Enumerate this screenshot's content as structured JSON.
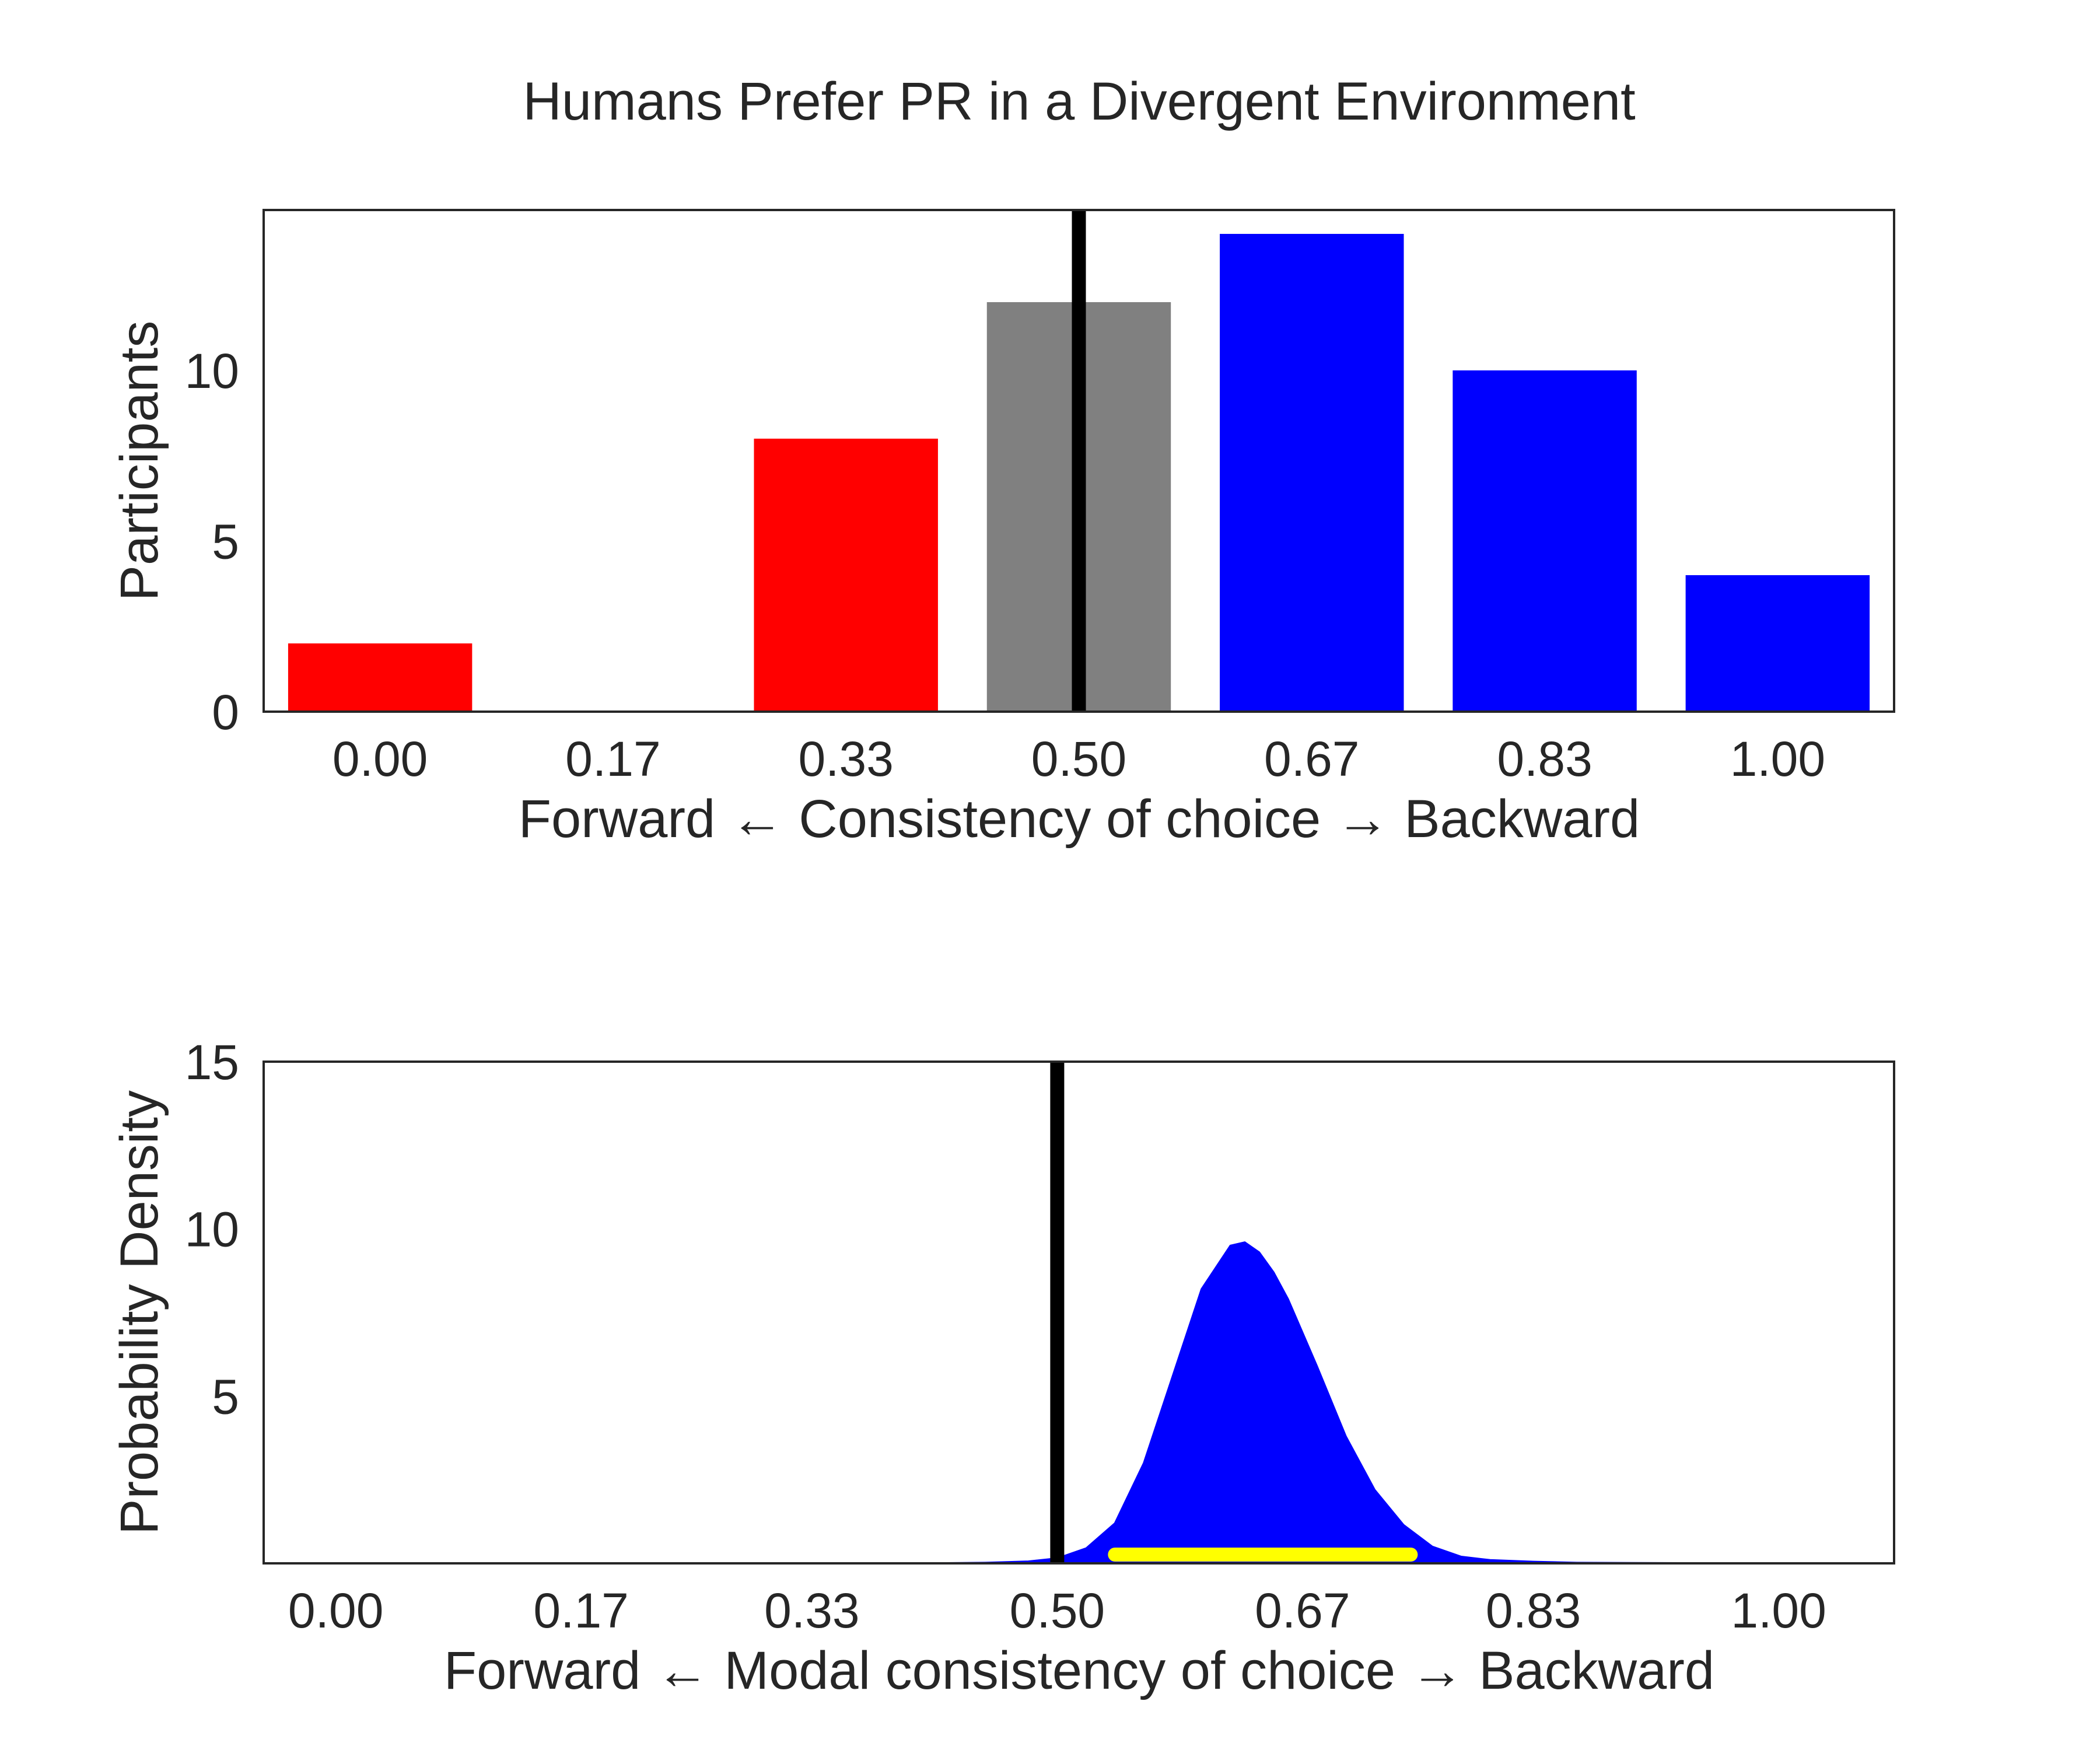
{
  "title": "Humans Prefer PR in a Divergent Environment",
  "colors": {
    "forward": "#ff0000",
    "neutral": "#808080",
    "backward": "#0000ff",
    "reference_line": "#000000",
    "interval": "#ffff00"
  },
  "chart_data": [
    {
      "type": "bar",
      "categories": [
        "0.00",
        "0.17",
        "0.33",
        "0.50",
        "0.67",
        "0.83",
        "1.00"
      ],
      "values": [
        2,
        0,
        8,
        12,
        14,
        10,
        4
      ],
      "bar_colors": [
        "forward",
        "forward",
        "forward",
        "neutral",
        "backward",
        "backward",
        "backward"
      ],
      "xlabel": "Forward ← Consistency of choice → Backward",
      "ylabel": "Participants",
      "ylim": [
        0,
        14.7
      ],
      "yticks": [
        0,
        5,
        10
      ],
      "reference_line_x": 0.5,
      "grid": false
    },
    {
      "type": "area",
      "x": [
        0.0,
        0.4,
        0.45,
        0.48,
        0.5,
        0.52,
        0.54,
        0.56,
        0.58,
        0.6,
        0.62,
        0.63,
        0.64,
        0.65,
        0.66,
        0.68,
        0.7,
        0.72,
        0.74,
        0.76,
        0.78,
        0.8,
        0.83,
        0.86,
        1.0
      ],
      "y": [
        0,
        0,
        0.02,
        0.06,
        0.15,
        0.45,
        1.2,
        3.0,
        5.6,
        8.2,
        9.5,
        9.6,
        9.3,
        8.7,
        7.9,
        5.9,
        3.8,
        2.2,
        1.15,
        0.5,
        0.2,
        0.1,
        0.05,
        0.02,
        0
      ],
      "x_range": [
        -0.05,
        1.08
      ],
      "xticks": [
        "0.00",
        "0.17",
        "0.33",
        "0.50",
        "0.67",
        "0.83",
        "1.00"
      ],
      "interval": [
        0.54,
        0.745
      ],
      "xlabel": "Forward ← Modal consistency of choice → Backward",
      "ylabel": "Probability Density",
      "ylim": [
        0,
        15
      ],
      "yticks": [
        5,
        10,
        15
      ],
      "reference_line_x": 0.5,
      "grid": false
    }
  ]
}
